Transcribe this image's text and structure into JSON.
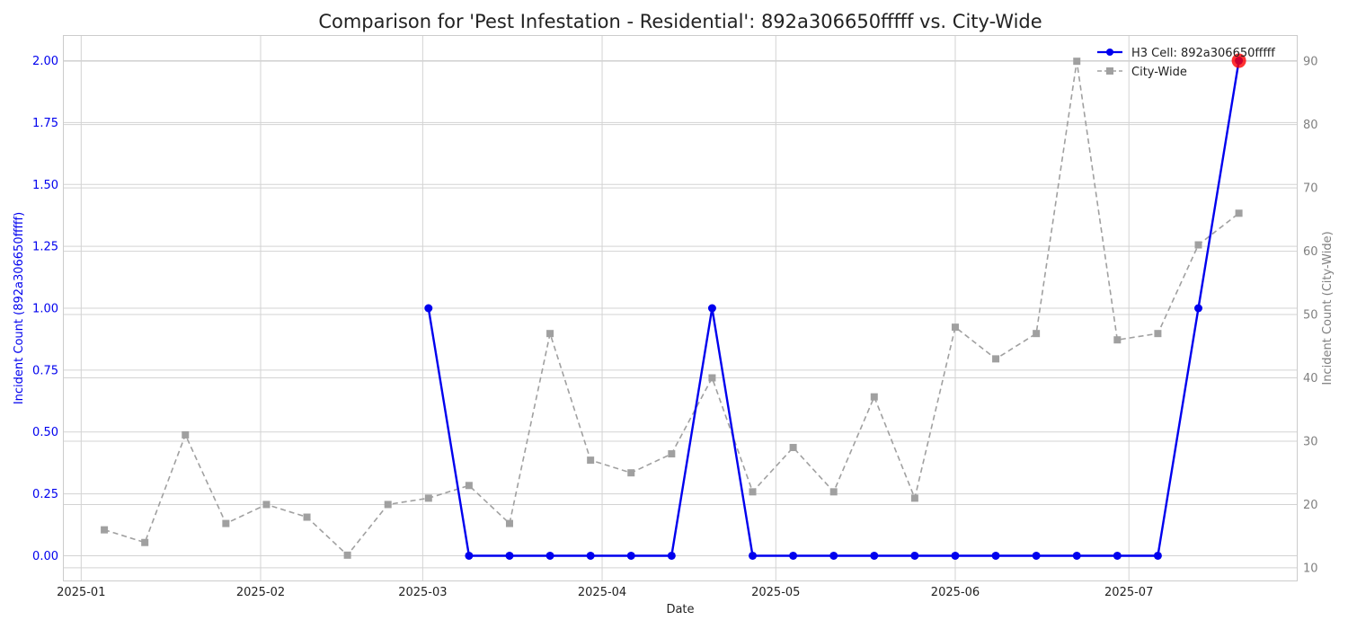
{
  "chart_data": {
    "type": "line",
    "title": "Comparison for 'Pest Infestation - Residential': 892a306650fffff vs. City-Wide",
    "xlabel": "Date",
    "ylabel_left": "Incident Count (892a306650fffff)",
    "ylabel_right": "Incident Count (City-Wide)",
    "x_ticks": [
      "2025-01",
      "2025-02",
      "2025-03",
      "2025-04",
      "2025-05",
      "2025-06",
      "2025-07"
    ],
    "y_left_ticks": [
      "0.00",
      "0.25",
      "0.50",
      "0.75",
      "1.00",
      "1.25",
      "1.50",
      "1.75",
      "2.00"
    ],
    "y_right_ticks": [
      "10",
      "20",
      "30",
      "40",
      "50",
      "60",
      "70",
      "80",
      "90"
    ],
    "ylim_left": [
      -0.1,
      2.1
    ],
    "ylim_right": [
      8,
      94
    ],
    "xlim": [
      "2024-12-29",
      "2025-07-30"
    ],
    "grid": true,
    "legend_position": "top-right",
    "series": [
      {
        "name": "H3 Cell: 892a306650fffff",
        "axis": "left",
        "color": "#0000ee",
        "marker": "circle",
        "style": "solid",
        "x": [
          "2025-03-02",
          "2025-03-09",
          "2025-03-16",
          "2025-03-23",
          "2025-03-30",
          "2025-04-06",
          "2025-04-13",
          "2025-04-20",
          "2025-04-27",
          "2025-05-04",
          "2025-05-11",
          "2025-05-18",
          "2025-05-25",
          "2025-06-01",
          "2025-06-08",
          "2025-06-15",
          "2025-06-22",
          "2025-06-29",
          "2025-07-06",
          "2025-07-13",
          "2025-07-20"
        ],
        "values": [
          1,
          0,
          0,
          0,
          0,
          0,
          0,
          1,
          0,
          0,
          0,
          0,
          0,
          0,
          0,
          0,
          0,
          0,
          0,
          1,
          2
        ]
      },
      {
        "name": "City-Wide",
        "axis": "right",
        "color": "#a0a0a0",
        "marker": "square",
        "style": "dashed",
        "x": [
          "2025-01-05",
          "2025-01-12",
          "2025-01-19",
          "2025-01-26",
          "2025-02-02",
          "2025-02-09",
          "2025-02-16",
          "2025-02-23",
          "2025-03-02",
          "2025-03-09",
          "2025-03-16",
          "2025-03-23",
          "2025-03-30",
          "2025-04-06",
          "2025-04-13",
          "2025-04-20",
          "2025-04-27",
          "2025-05-04",
          "2025-05-11",
          "2025-05-18",
          "2025-05-25",
          "2025-06-01",
          "2025-06-08",
          "2025-06-15",
          "2025-06-22",
          "2025-06-29",
          "2025-07-06",
          "2025-07-13",
          "2025-07-20"
        ],
        "values": [
          16,
          14,
          31,
          17,
          20,
          18,
          12,
          20,
          21,
          23,
          17,
          47,
          27,
          25,
          28,
          40,
          22,
          29,
          22,
          37,
          21,
          48,
          43,
          47,
          90,
          46,
          47,
          61,
          66
        ]
      }
    ],
    "highlight": {
      "date": "2025-07-20",
      "value": 2,
      "axis": "left",
      "color": "#ff0000"
    }
  }
}
